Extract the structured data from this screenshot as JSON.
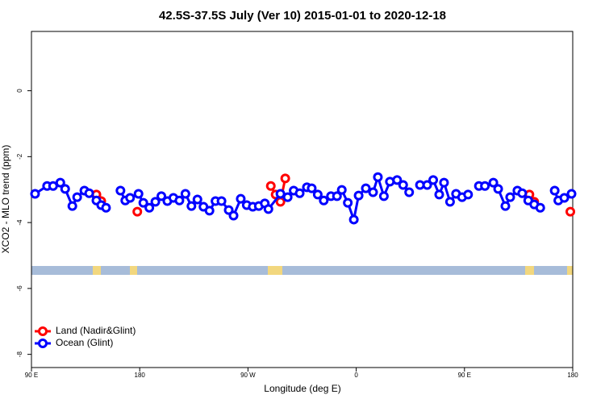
{
  "chart_data": {
    "type": "line",
    "title": "42.5S-37.5S July (Ver 10)   2015-01-01 to 2020-12-18",
    "x_label": "Longitude (deg E)",
    "y_label": "XCO2 - MLO trend (ppm)",
    "xlim": [
      90,
      540
    ],
    "ylim": [
      -8.4,
      1.8
    ],
    "xticks": [
      {
        "value": 90,
        "label": "90 E"
      },
      180,
      {
        "value": 270,
        "label": "90 W"
      },
      {
        "value": 360,
        "label": "0"
      },
      {
        "value": 450,
        "label": "90 E"
      },
      {
        "value": 540,
        "label": "180"
      }
    ],
    "yticks": [
      0,
      -2,
      -4,
      -6,
      -8
    ],
    "legend": "bottomleft",
    "series": [
      {
        "name": "Land (Nadir&Glint)",
        "color": "#ff0000",
        "x": [
          144,
          148,
          null,
          178,
          null,
          289,
          293,
          297,
          301,
          null,
          504,
          508,
          null,
          538
        ],
        "values": [
          -3.15,
          -3.35,
          null,
          -3.67,
          null,
          -2.89,
          -3.15,
          -3.37,
          -2.66,
          null,
          -3.15,
          -3.37,
          null,
          -3.67
        ]
      },
      {
        "name": "Ocean (Glint)",
        "color": "#0000ff",
        "x": [
          93,
          103,
          108,
          114,
          118,
          124,
          128,
          134,
          138,
          144,
          148,
          152,
          null,
          164,
          168,
          172,
          179,
          183,
          188,
          193,
          198,
          203,
          208,
          213,
          218,
          223,
          228,
          233,
          238,
          243,
          248,
          254,
          258,
          264,
          269,
          274,
          279,
          284,
          287,
          297,
          303,
          308,
          313,
          319,
          323,
          328,
          333,
          339,
          344,
          348,
          353,
          358,
          362,
          368,
          374,
          378,
          383,
          388,
          394,
          399,
          404,
          null,
          413,
          419,
          424,
          429,
          433,
          438,
          443,
          448,
          453,
          null,
          462,
          467,
          474,
          478,
          484,
          488,
          494,
          498,
          503,
          508,
          513,
          null,
          525,
          528,
          533,
          539
        ],
        "values": [
          -3.13,
          -2.89,
          -2.89,
          -2.79,
          -2.98,
          -3.5,
          -3.23,
          -3.03,
          -3.11,
          -3.33,
          -3.47,
          -3.55,
          null,
          -3.03,
          -3.33,
          -3.25,
          -3.13,
          -3.4,
          -3.55,
          -3.37,
          -3.2,
          -3.35,
          -3.25,
          -3.33,
          -3.13,
          -3.5,
          -3.3,
          -3.52,
          -3.64,
          -3.35,
          -3.35,
          -3.62,
          -3.79,
          -3.28,
          -3.47,
          -3.52,
          -3.5,
          -3.42,
          -3.59,
          -3.13,
          -3.23,
          -3.03,
          -3.11,
          -2.93,
          -2.96,
          -3.15,
          -3.33,
          -3.2,
          -3.2,
          -3.01,
          -3.4,
          -3.91,
          -3.18,
          -2.96,
          -3.08,
          -2.62,
          -3.2,
          -2.76,
          -2.71,
          -2.86,
          -3.08,
          null,
          -2.86,
          -2.86,
          -2.71,
          -3.15,
          -2.79,
          -3.37,
          -3.13,
          -3.23,
          -3.15,
          null,
          -2.89,
          -2.89,
          -2.79,
          -2.98,
          -3.5,
          -3.23,
          -3.03,
          -3.11,
          -3.33,
          -3.45,
          -3.55,
          null,
          -3.03,
          -3.33,
          -3.25,
          -3.13
        ]
      }
    ]
  }
}
